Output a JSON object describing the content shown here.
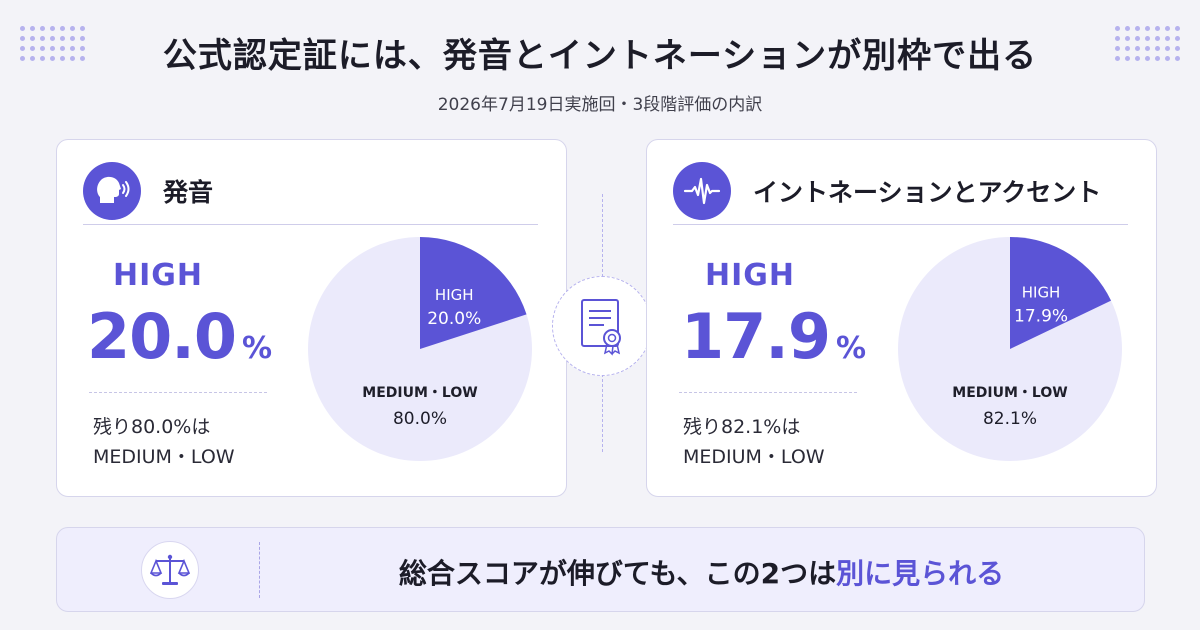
{
  "header": {
    "title": "公式認定証には、発音とイントネーションが別枠で出る",
    "subtitle": "2026年7月19日実施回・3段階評価の内訳"
  },
  "colors": {
    "accent": "#5b54d6",
    "pie_rest": "#ebeafb",
    "bg": "#f3f3f8"
  },
  "icons": {
    "pronunciation": "speaking-head-icon",
    "intonation": "waveform-icon",
    "center": "certificate-icon",
    "banner": "balance-scale-icon"
  },
  "cards": [
    {
      "title": "発音",
      "high_label": "HIGH",
      "high_value": "20.0",
      "pct_sign": "%",
      "rest_line1": "残り80.0%は",
      "rest_line2": "MEDIUM・LOW"
    },
    {
      "title": "イントネーションとアクセント",
      "high_label": "HIGH",
      "high_value": "17.9",
      "pct_sign": "%",
      "rest_line1": "残り82.1%は",
      "rest_line2": "MEDIUM・LOW"
    }
  ],
  "chart_data": [
    {
      "type": "pie",
      "categories": [
        "HIGH",
        "MEDIUM・LOW"
      ],
      "values": [
        20.0,
        80.0
      ],
      "labels": [
        "20.0%",
        "80.0%"
      ]
    },
    {
      "type": "pie",
      "categories": [
        "HIGH",
        "MEDIUM・LOW"
      ],
      "values": [
        17.9,
        82.1
      ],
      "labels": [
        "17.9%",
        "82.1%"
      ]
    }
  ],
  "banner": {
    "text_before": "総合スコアが伸びても、この2つは",
    "text_accent": "別に見られる"
  }
}
